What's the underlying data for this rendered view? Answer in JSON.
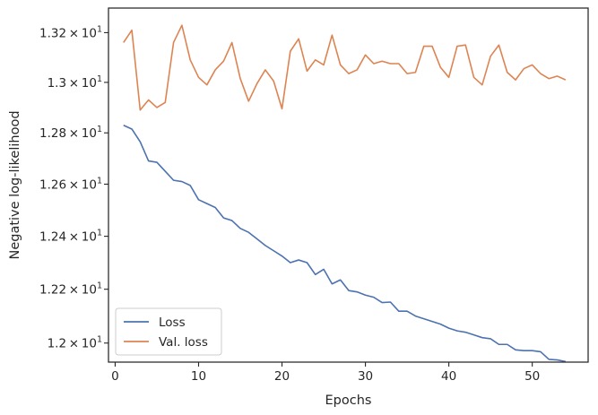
{
  "chart_data": {
    "type": "line",
    "title": "",
    "xlabel": "Epochs",
    "ylabel": "Negative log-likelihood",
    "y_scale": "log",
    "xlim": [
      -0.8,
      56.7
    ],
    "ylim": [
      11.93,
      13.3
    ],
    "grid": false,
    "legend": "lower-left",
    "x_ticks": [
      {
        "value": 0,
        "label": "0"
      },
      {
        "value": 10,
        "label": "10"
      },
      {
        "value": 20,
        "label": "20"
      },
      {
        "value": 30,
        "label": "30"
      },
      {
        "value": 40,
        "label": "40"
      },
      {
        "value": 50,
        "label": "50"
      }
    ],
    "y_ticks": [
      {
        "value": 12.0,
        "base": "1.2",
        "exp": "1"
      },
      {
        "value": 12.2,
        "base": "1.22",
        "exp": "1"
      },
      {
        "value": 12.4,
        "base": "1.24",
        "exp": "1"
      },
      {
        "value": 12.6,
        "base": "1.26",
        "exp": "1"
      },
      {
        "value": 12.8,
        "base": "1.28",
        "exp": "1"
      },
      {
        "value": 13.0,
        "base": "1.3",
        "exp": "1"
      },
      {
        "value": 13.2,
        "base": "1.32",
        "exp": "1"
      }
    ],
    "series": [
      {
        "name": "Loss",
        "color": "#4c72b0",
        "x": [
          1,
          2,
          3,
          4,
          5,
          6,
          7,
          8,
          9,
          10,
          11,
          12,
          13,
          14,
          15,
          16,
          17,
          18,
          19,
          20,
          21,
          22,
          23,
          24,
          25,
          26,
          27,
          28,
          29,
          30,
          31,
          32,
          33,
          34,
          35,
          36,
          37,
          38,
          39,
          40,
          41,
          42,
          43,
          44,
          45,
          46,
          47,
          48,
          49,
          50,
          51,
          52,
          53,
          54
        ],
        "y": [
          12.83,
          12.815,
          12.765,
          12.69,
          12.685,
          12.65,
          12.615,
          12.61,
          12.595,
          12.54,
          12.525,
          12.51,
          12.47,
          12.46,
          12.43,
          12.415,
          12.39,
          12.365,
          12.345,
          12.325,
          12.3,
          12.31,
          12.3,
          12.255,
          12.275,
          12.22,
          12.235,
          12.195,
          12.19,
          12.178,
          12.17,
          12.15,
          12.152,
          12.118,
          12.118,
          12.1,
          12.09,
          12.08,
          12.07,
          12.055,
          12.045,
          12.04,
          12.03,
          12.02,
          12.016,
          11.995,
          11.995,
          11.975,
          11.972,
          11.972,
          11.968,
          11.94,
          11.938,
          11.932
        ]
      },
      {
        "name": "Val. loss",
        "color": "#dd8452",
        "x": [
          1,
          2,
          3,
          4,
          5,
          6,
          7,
          8,
          9,
          10,
          11,
          12,
          13,
          14,
          15,
          16,
          17,
          18,
          19,
          20,
          21,
          22,
          23,
          24,
          25,
          26,
          27,
          28,
          29,
          30,
          31,
          32,
          33,
          34,
          35,
          36,
          37,
          38,
          39,
          40,
          41,
          42,
          43,
          44,
          45,
          46,
          47,
          48,
          49,
          50,
          51,
          52,
          53,
          54
        ],
        "y": [
          13.16,
          13.21,
          12.89,
          12.93,
          12.9,
          12.92,
          13.16,
          13.23,
          13.09,
          13.02,
          12.99,
          13.05,
          13.085,
          13.16,
          13.015,
          12.925,
          12.995,
          13.05,
          13.005,
          12.895,
          13.125,
          13.175,
          13.045,
          13.09,
          13.07,
          13.19,
          13.07,
          13.035,
          13.05,
          13.11,
          13.075,
          13.085,
          13.075,
          13.075,
          13.035,
          13.04,
          13.145,
          13.145,
          13.06,
          13.02,
          13.145,
          13.15,
          13.02,
          12.99,
          13.105,
          13.15,
          13.04,
          13.01,
          13.055,
          13.07,
          13.035,
          13.015,
          13.025,
          13.01
        ]
      }
    ]
  }
}
